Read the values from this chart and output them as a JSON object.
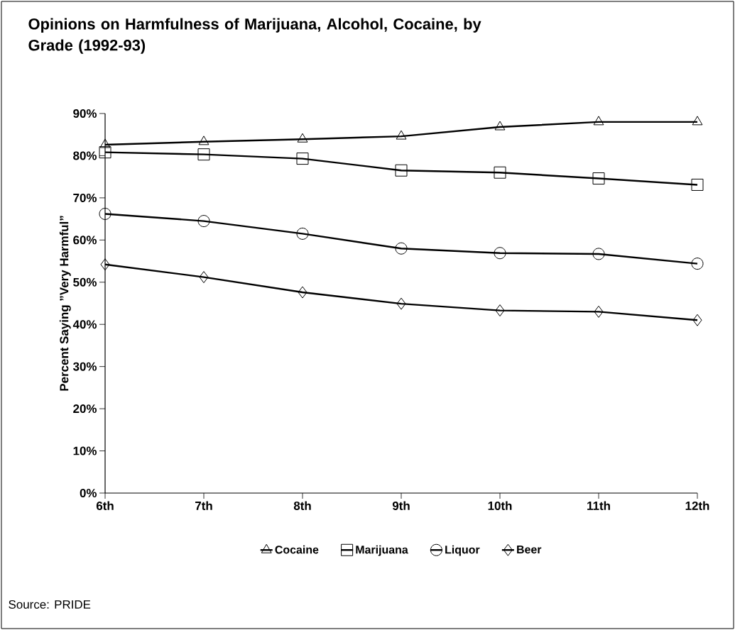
{
  "chart_data": {
    "type": "line",
    "title": "Opinions on Harmfulness of Marijuana, Alcohol, Cocaine, by Grade (1992-93)",
    "ylabel": "Percent Saying ”Very Harmful”",
    "categories": [
      "6th",
      "7th",
      "8th",
      "9th",
      "10th",
      "11th",
      "12th"
    ],
    "series": [
      {
        "name": "Cocaine",
        "color": "#000000",
        "marker": "triangle",
        "values": [
          82.6,
          83.3,
          83.9,
          84.6,
          86.8,
          88.0,
          88.0
        ]
      },
      {
        "name": "Marijuana",
        "color": "#000000",
        "marker": "square",
        "values": [
          80.8,
          80.3,
          79.3,
          76.5,
          76.0,
          74.6,
          73.1
        ]
      },
      {
        "name": "Liquor",
        "color": "#000000",
        "marker": "circle",
        "values": [
          66.2,
          64.5,
          61.5,
          58.0,
          56.9,
          56.7,
          54.4
        ]
      },
      {
        "name": "Beer",
        "color": "#000000",
        "marker": "diamond",
        "values": [
          54.2,
          51.2,
          47.6,
          44.9,
          43.3,
          43.0,
          41.0
        ]
      }
    ],
    "ylim": [
      0,
      90
    ],
    "yticks": [
      {
        "value": 0,
        "label": "0%"
      },
      {
        "value": 10,
        "label": "10%"
      },
      {
        "value": 20,
        "label": "20%"
      },
      {
        "value": 30,
        "label": "30%"
      },
      {
        "value": 40,
        "label": "40%"
      },
      {
        "value": 50,
        "label": "50%"
      },
      {
        "value": 60,
        "label": "60%"
      },
      {
        "value": 70,
        "label": "70%"
      },
      {
        "value": 80,
        "label": "80%"
      },
      {
        "value": 90,
        "label": "90%"
      }
    ],
    "grid": false,
    "legend": "bottom",
    "line_style": "solid",
    "annotations": [
      "Source:    PRIDE"
    ]
  }
}
